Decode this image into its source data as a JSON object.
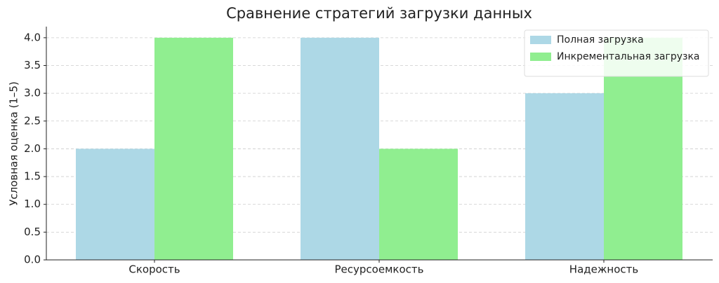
{
  "chart_data": {
    "type": "bar",
    "title": "Сравнение стратегий загрузки данных",
    "y_label": "Условная оценка (1–5)",
    "categories": [
      "Скорость",
      "Ресурсоемкость",
      "Надежность"
    ],
    "series": [
      {
        "name": "Полная загрузка",
        "color": "#add8e6",
        "values": [
          2,
          4,
          3
        ]
      },
      {
        "name": "Инкрементальная загрузка",
        "color": "#90ee90",
        "values": [
          4,
          2,
          4
        ]
      }
    ],
    "ylim": [
      0,
      4.2
    ],
    "yticks": [
      {
        "value": 0,
        "label": "0.0"
      },
      {
        "value": 0.5,
        "label": "0.5"
      },
      {
        "value": 1,
        "label": "1.0"
      },
      {
        "value": 1.5,
        "label": "1.5"
      },
      {
        "value": 2,
        "label": "2.0"
      },
      {
        "value": 2.5,
        "label": "2.5"
      },
      {
        "value": 3,
        "label": "3.0"
      },
      {
        "value": 3.5,
        "label": "3.5"
      },
      {
        "value": 4,
        "label": "4.0"
      }
    ],
    "grid": true,
    "legend": "upper right"
  }
}
